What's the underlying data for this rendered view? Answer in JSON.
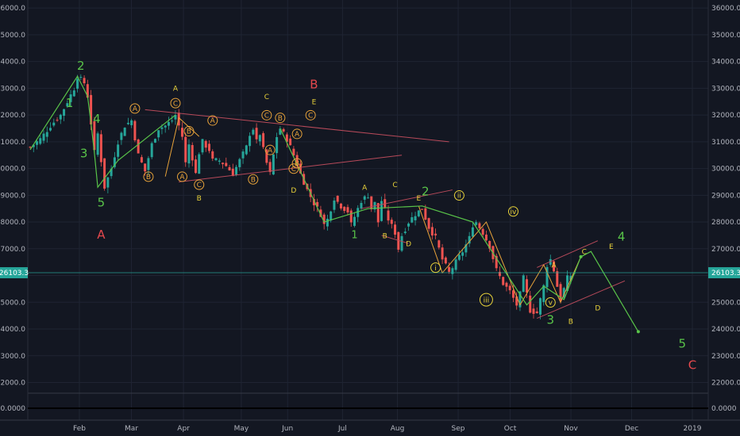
{
  "chart_data": {
    "type": "candlestick",
    "y_axis": {
      "ticks": [
        "22000.0",
        "23000.0",
        "24000.0",
        "25000.0",
        "26000.0",
        "27000.0",
        "28000.0",
        "29000.0",
        "30000.0",
        "31000.0",
        "32000.0",
        "33000.0",
        "34000.0",
        "35000.0",
        "36000.0"
      ],
      "range": [
        21600,
        36300
      ],
      "position": "both"
    },
    "x_axis": {
      "ticks": [
        "Feb",
        "Mar",
        "Apr",
        "May",
        "Jun",
        "Jul",
        "Aug",
        "Sep",
        "Oct",
        "Nov",
        "Dec",
        "2019"
      ]
    },
    "last_price": {
      "label_left": "26103.3",
      "label_right": "26103.3",
      "value": 26103.3
    },
    "indicator_pane": {
      "label_left": "0.0000",
      "label_right": "0.0000",
      "value": 0
    },
    "price_path": [
      [
        0,
        30800
      ],
      [
        3,
        31100
      ],
      [
        6,
        31600
      ],
      [
        9,
        32000
      ],
      [
        11,
        32500
      ],
      [
        13,
        33000
      ],
      [
        14,
        33450
      ],
      [
        16,
        33200
      ],
      [
        17,
        32700
      ],
      [
        18,
        31700
      ],
      [
        19,
        30600
      ],
      [
        20,
        31300
      ],
      [
        22,
        29300
      ],
      [
        24,
        30000
      ],
      [
        26,
        31000
      ],
      [
        28,
        31600
      ],
      [
        30,
        31800
      ],
      [
        32,
        30500
      ],
      [
        34,
        29900
      ],
      [
        36,
        30900
      ],
      [
        38,
        31500
      ],
      [
        40,
        31600
      ],
      [
        42,
        31800
      ],
      [
        43,
        32000
      ],
      [
        45,
        31200
      ],
      [
        46,
        30200
      ],
      [
        47,
        30900
      ],
      [
        48,
        30400
      ],
      [
        49,
        29800
      ],
      [
        50,
        30600
      ],
      [
        51,
        31000
      ],
      [
        53,
        30700
      ],
      [
        54,
        30300
      ],
      [
        56,
        30300
      ],
      [
        58,
        30100
      ],
      [
        60,
        29800
      ],
      [
        62,
        30300
      ],
      [
        64,
        30800
      ],
      [
        65,
        31300
      ],
      [
        66,
        31500
      ],
      [
        67,
        31000
      ],
      [
        68,
        31300
      ],
      [
        69,
        30700
      ],
      [
        70,
        30200
      ],
      [
        71,
        29800
      ],
      [
        72,
        30500
      ],
      [
        73,
        31200
      ],
      [
        74,
        31500
      ],
      [
        76,
        31100
      ],
      [
        78,
        30500
      ],
      [
        80,
        29800
      ],
      [
        82,
        29200
      ],
      [
        84,
        28700
      ],
      [
        86,
        28300
      ],
      [
        87,
        27900
      ],
      [
        88,
        28100
      ],
      [
        90,
        28900
      ],
      [
        92,
        28600
      ],
      [
        94,
        28400
      ],
      [
        95,
        27900
      ],
      [
        96,
        28200
      ],
      [
        98,
        28800
      ],
      [
        100,
        29000
      ],
      [
        101,
        28500
      ],
      [
        102,
        28700
      ],
      [
        103,
        28000
      ],
      [
        104,
        28800
      ],
      [
        106,
        28100
      ],
      [
        108,
        27600
      ],
      [
        109,
        27000
      ],
      [
        110,
        27500
      ],
      [
        112,
        28000
      ],
      [
        114,
        28300
      ],
      [
        116,
        28500
      ],
      [
        118,
        27800
      ],
      [
        120,
        27400
      ],
      [
        122,
        26600
      ],
      [
        124,
        26100
      ],
      [
        126,
        26500
      ],
      [
        128,
        26900
      ],
      [
        130,
        27400
      ],
      [
        131,
        27900
      ],
      [
        132,
        28000
      ],
      [
        134,
        27600
      ],
      [
        136,
        27100
      ],
      [
        138,
        26200
      ],
      [
        140,
        25700
      ],
      [
        142,
        25400
      ],
      [
        144,
        24900
      ],
      [
        145,
        25300
      ],
      [
        146,
        25900
      ],
      [
        147,
        25300
      ],
      [
        148,
        24700
      ],
      [
        150,
        24600
      ],
      [
        152,
        25600
      ],
      [
        153,
        26400
      ],
      [
        154,
        26600
      ],
      [
        155,
        26200
      ],
      [
        156,
        25600
      ],
      [
        157,
        25100
      ],
      [
        158,
        25500
      ],
      [
        159,
        25900
      ],
      [
        160,
        26000
      ],
      [
        161,
        26103
      ]
    ],
    "last_candle_index": 161,
    "wave_path_green": [
      [
        0,
        30700
      ],
      [
        14,
        33450
      ],
      [
        17,
        32700
      ],
      [
        18,
        31700
      ],
      [
        19,
        30600
      ],
      [
        20,
        29300
      ],
      [
        26,
        30300
      ],
      [
        43,
        32000
      ]
    ],
    "wave_path_green2": [
      [
        74,
        31500
      ],
      [
        87,
        28000
      ],
      [
        100,
        28500
      ],
      [
        116,
        28600
      ],
      [
        131,
        28000
      ],
      [
        147,
        24900
      ],
      [
        152,
        25600
      ],
      [
        158,
        25100
      ],
      [
        163,
        26700
      ],
      [
        166,
        26900
      ],
      [
        180,
        23900
      ]
    ],
    "orange_lines": [
      [
        [
          40,
          29700
        ],
        [
          44,
          31900
        ],
        [
          50,
          31200
        ]
      ],
      [
        [
          115,
          28600
        ],
        [
          122,
          26100
        ],
        [
          135,
          28000
        ],
        [
          145,
          24900
        ],
        [
          152,
          26400
        ],
        [
          157,
          25000
        ],
        [
          163,
          26700
        ]
      ]
    ],
    "channels": [
      [
        [
          34,
          32200
        ],
        [
          124,
          31000
        ]
      ],
      [
        [
          44,
          29500
        ],
        [
          110,
          30500
        ]
      ],
      [
        [
          98,
          28500
        ],
        [
          125,
          29200
        ]
      ],
      [
        [
          104,
          27500
        ],
        [
          112,
          27200
        ]
      ],
      [
        [
          150,
          24400
        ],
        [
          176,
          25800
        ]
      ],
      [
        [
          150,
          26300
        ],
        [
          168,
          27300
        ]
      ]
    ],
    "labels": [
      {
        "t": "2",
        "i": 15,
        "v": 33450,
        "c": "#59c449",
        "s": 15,
        "dy": -8
      },
      {
        "t": "1",
        "i": 14,
        "v": 32300,
        "c": "#59c449",
        "s": 15,
        "dx": -10
      },
      {
        "t": "4",
        "i": 19,
        "v": 31700,
        "c": "#59c449",
        "s": 15,
        "dx": 3
      },
      {
        "t": "3",
        "i": 18,
        "v": 30600,
        "c": "#59c449",
        "s": 15,
        "dx": -9,
        "dy": 6
      },
      {
        "t": "5",
        "i": 21,
        "v": 29000,
        "c": "#59c449",
        "s": 15,
        "dy": 14
      },
      {
        "t": "A",
        "i": 21,
        "v": 27800,
        "c": "#e5484d",
        "s": 15,
        "dy": 14
      },
      {
        "t": "A",
        "i": 43,
        "v": 32900,
        "c": "#e8d23a",
        "s": 9
      },
      {
        "t": "C",
        "i": 43,
        "v": 32350,
        "c": "#e8a33a",
        "s": 9,
        "ring": true
      },
      {
        "t": "A",
        "i": 31,
        "v": 32150,
        "c": "#e8a33a",
        "s": 9,
        "ring": true
      },
      {
        "t": "B",
        "i": 35,
        "v": 29600,
        "c": "#e8a33a",
        "s": 9,
        "ring": true
      },
      {
        "t": "A",
        "i": 45,
        "v": 29600,
        "c": "#e8a33a",
        "s": 9,
        "ring": true
      },
      {
        "t": "B",
        "i": 47,
        "v": 31300,
        "c": "#e8a33a",
        "s": 9,
        "ring": true
      },
      {
        "t": "C",
        "i": 50,
        "v": 29300,
        "c": "#e8a33a",
        "s": 9,
        "ring": true
      },
      {
        "t": "B",
        "i": 50,
        "v": 28800,
        "c": "#e8d23a",
        "s": 9
      },
      {
        "t": "A",
        "i": 54,
        "v": 31700,
        "c": "#e8a33a",
        "s": 9,
        "ring": true
      },
      {
        "t": "B",
        "i": 66,
        "v": 29500,
        "c": "#e8a33a",
        "s": 9,
        "ring": true
      },
      {
        "t": "C",
        "i": 70,
        "v": 32600,
        "c": "#e8d23a",
        "s": 9
      },
      {
        "t": "C",
        "i": 70,
        "v": 31900,
        "c": "#e8a33a",
        "s": 9,
        "ring": true
      },
      {
        "t": "B",
        "i": 74,
        "v": 31800,
        "c": "#e8a33a",
        "s": 9,
        "ring": true
      },
      {
        "t": "A",
        "i": 71,
        "v": 30600,
        "c": "#e8a33a",
        "s": 9,
        "ring": true
      },
      {
        "t": "A",
        "i": 79,
        "v": 31200,
        "c": "#e8a33a",
        "s": 9,
        "ring": true
      },
      {
        "t": "C",
        "i": 78,
        "v": 29900,
        "c": "#e8a33a",
        "s": 9,
        "ring": true
      },
      {
        "t": "B",
        "i": 79,
        "v": 30100,
        "c": "#e8a33a",
        "s": 9,
        "ring": true
      },
      {
        "t": "D",
        "i": 78,
        "v": 29100,
        "c": "#e8d23a",
        "s": 9
      },
      {
        "t": "B",
        "i": 84,
        "v": 33000,
        "c": "#e5484d",
        "s": 15
      },
      {
        "t": "E",
        "i": 84,
        "v": 32400,
        "c": "#e8d23a",
        "s": 9
      },
      {
        "t": "C",
        "i": 83,
        "v": 31900,
        "c": "#e8a33a",
        "s": 9,
        "ring": true
      },
      {
        "t": "1",
        "i": 96,
        "v": 27400,
        "c": "#59c449",
        "s": 13
      },
      {
        "t": "A",
        "i": 99,
        "v": 29200,
        "c": "#e8d23a",
        "s": 9
      },
      {
        "t": "B",
        "i": 105,
        "v": 27400,
        "c": "#e8d23a",
        "s": 9
      },
      {
        "t": "C",
        "i": 108,
        "v": 29300,
        "c": "#e8d23a",
        "s": 9
      },
      {
        "t": "E",
        "i": 115,
        "v": 28800,
        "c": "#e8d23a",
        "s": 9
      },
      {
        "t": "2",
        "i": 117,
        "v": 29000,
        "c": "#59c449",
        "s": 15
      },
      {
        "t": "D",
        "i": 112,
        "v": 27100,
        "c": "#e8d23a",
        "s": 9
      },
      {
        "t": "i",
        "i": 120,
        "v": 26200,
        "c": "#e8d23a",
        "s": 9,
        "ring": true
      },
      {
        "t": "ii",
        "i": 127,
        "v": 28900,
        "c": "#e8d23a",
        "s": 9,
        "ring": true
      },
      {
        "t": "iii",
        "i": 135,
        "v": 25000,
        "c": "#e8d23a",
        "s": 9,
        "ring": true
      },
      {
        "t": "iv",
        "i": 143,
        "v": 28300,
        "c": "#e8d23a",
        "s": 9,
        "ring": true
      },
      {
        "t": "v",
        "i": 154,
        "v": 24900,
        "c": "#e8d23a",
        "s": 9,
        "ring": true
      },
      {
        "t": "3",
        "i": 154,
        "v": 24200,
        "c": "#59c449",
        "s": 15
      },
      {
        "t": "A",
        "i": 155,
        "v": 26300,
        "c": "#e8d23a",
        "s": 9
      },
      {
        "t": "B",
        "i": 160,
        "v": 24200,
        "c": "#e8d23a",
        "s": 9
      },
      {
        "t": "C",
        "i": 164,
        "v": 26800,
        "c": "#e8d23a",
        "s": 9
      },
      {
        "t": "D",
        "i": 168,
        "v": 24700,
        "c": "#e8d23a",
        "s": 9
      },
      {
        "t": "E",
        "i": 172,
        "v": 27000,
        "c": "#e8d23a",
        "s": 9
      },
      {
        "t": "4",
        "i": 175,
        "v": 27300,
        "c": "#59c449",
        "s": 15
      },
      {
        "t": "5",
        "i": 193,
        "v": 23300,
        "c": "#59c449",
        "s": 15
      },
      {
        "t": "C",
        "i": 196,
        "v": 22500,
        "c": "#e5484d",
        "s": 15
      }
    ],
    "colors": {
      "background": "#131722",
      "grid": "#1f2433",
      "up": "#26a69a",
      "down": "#ef5350",
      "wave": "#59c449",
      "orange": "#e8a33a",
      "channel": "#b84a5a",
      "price_line": "#26a69a",
      "axis_text": "#b2b5be"
    },
    "grid": true,
    "legend": "none"
  }
}
